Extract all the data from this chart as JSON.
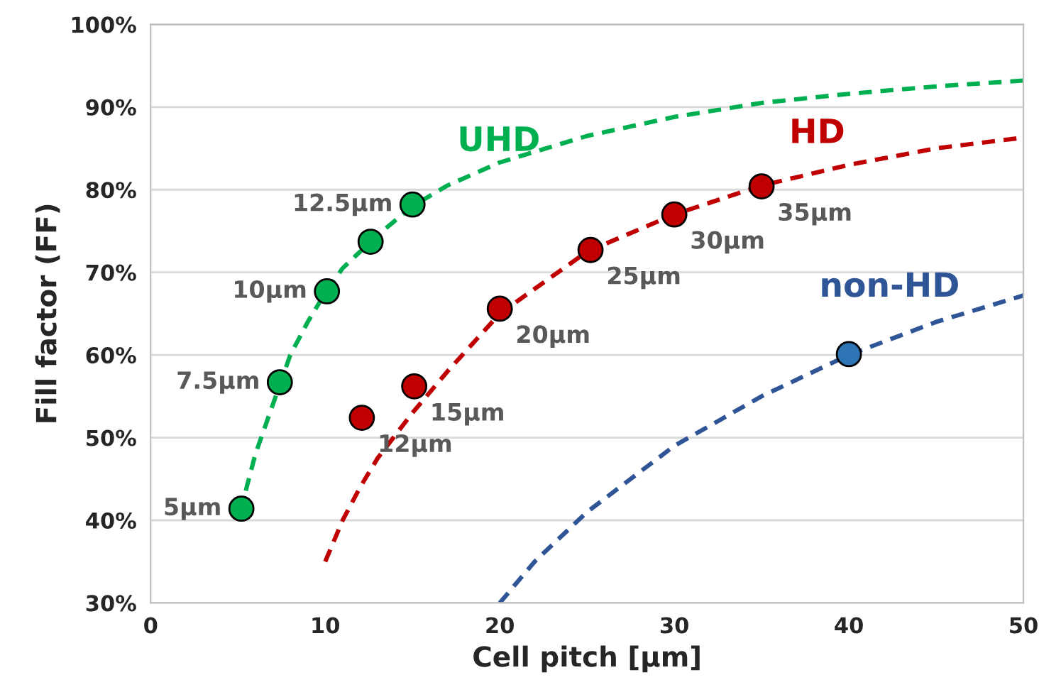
{
  "chart_data": {
    "type": "line",
    "xlabel": "Cell pitch [µm]",
    "ylabel": "Fill factor (FF)",
    "xlim": [
      0,
      50
    ],
    "ylim": [
      30,
      100
    ],
    "xticks": [
      0,
      10,
      20,
      30,
      40,
      50
    ],
    "yticks": [
      {
        "value": 30,
        "label": "30%"
      },
      {
        "value": 40,
        "label": "40%"
      },
      {
        "value": 50,
        "label": "50%"
      },
      {
        "value": 60,
        "label": "60%"
      },
      {
        "value": 70,
        "label": "70%"
      },
      {
        "value": 80,
        "label": "80%"
      },
      {
        "value": 90,
        "label": "90%"
      },
      {
        "value": 100,
        "label": "100%"
      }
    ],
    "grid": "y",
    "legend": false,
    "line_style": "dashed",
    "series": [
      {
        "name": "UHD",
        "color": "#00b050",
        "x": [
          5.2,
          5.5,
          6,
          7,
          8,
          9,
          10,
          11,
          12,
          13,
          15,
          17,
          20,
          25,
          30,
          35,
          40,
          45,
          50
        ],
        "values": [
          41,
          44,
          48,
          54,
          60,
          64,
          67.5,
          70.5,
          72.5,
          74.5,
          78,
          80.5,
          83.3,
          86.5,
          88.8,
          90.5,
          91.6,
          92.5,
          93.2
        ]
      },
      {
        "type": "scatter",
        "color": "#00b050",
        "marker": "circle",
        "x": [
          5.2,
          7.4,
          10.1,
          12.6,
          15
        ],
        "values": [
          41.4,
          56.7,
          67.7,
          73.7,
          78.2
        ]
      },
      {
        "name": "HD",
        "color": "#c00000",
        "x": [
          10,
          11,
          12,
          13,
          15,
          17,
          20,
          25,
          30,
          35,
          40,
          45,
          50
        ],
        "values": [
          35,
          40,
          44,
          47.5,
          53,
          58,
          65,
          72.5,
          77,
          80.5,
          83,
          85,
          86.3
        ]
      },
      {
        "type": "scatter",
        "color": "#c00000",
        "marker": "circle",
        "x": [
          12.1,
          15.1,
          20,
          25.2,
          30,
          35
        ],
        "values": [
          52.4,
          56.2,
          65.6,
          72.7,
          77,
          80.4
        ]
      },
      {
        "name": "non-HD",
        "color": "#2f5597",
        "x": [
          20,
          22,
          25,
          30,
          35,
          40,
          45,
          50
        ],
        "values": [
          30,
          35,
          41,
          49,
          55,
          60,
          64,
          67.2
        ]
      },
      {
        "type": "scatter",
        "color": "#2e75b6",
        "marker": "circle",
        "x": [
          40
        ],
        "values": [
          60.1
        ]
      }
    ],
    "annotations": [
      {
        "text": "5µm",
        "x": 5.2,
        "y": 41.4
      },
      {
        "text": "7.5µm",
        "x": 7.4,
        "y": 56.7
      },
      {
        "text": "10µm",
        "x": 10.1,
        "y": 67.7
      },
      {
        "text": "12.5µm",
        "x": 15,
        "y": 78.2
      },
      {
        "text": "12µm",
        "x": 12.1,
        "y": 52.4
      },
      {
        "text": "15µm",
        "x": 15.1,
        "y": 56.2
      },
      {
        "text": "20µm",
        "x": 20,
        "y": 65.6
      },
      {
        "text": "25µm",
        "x": 25.2,
        "y": 72.7
      },
      {
        "text": "30µm",
        "x": 30,
        "y": 77
      },
      {
        "text": "35µm",
        "x": 35,
        "y": 80.4
      }
    ]
  }
}
